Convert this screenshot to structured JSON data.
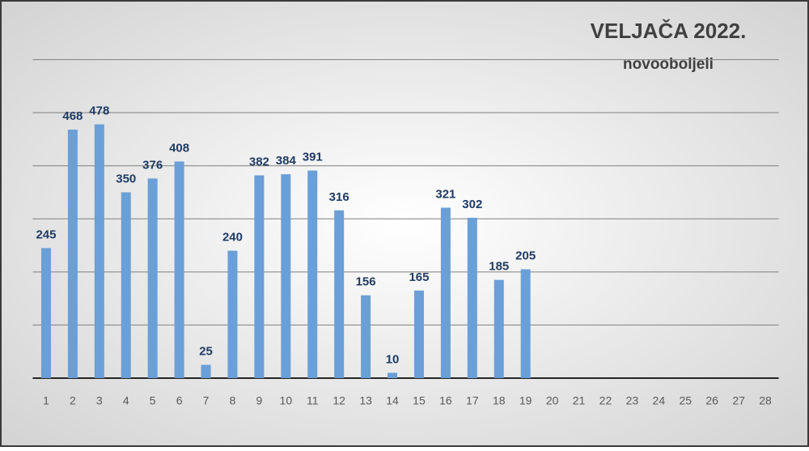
{
  "chart_data": {
    "type": "bar",
    "title": "VELJAČA 2022.",
    "subtitle": "novooboljeli",
    "categories": [
      "1",
      "2",
      "3",
      "4",
      "5",
      "6",
      "7",
      "8",
      "9",
      "10",
      "11",
      "12",
      "13",
      "14",
      "15",
      "16",
      "17",
      "18",
      "19",
      "20",
      "21",
      "22",
      "23",
      "24",
      "25",
      "26",
      "27",
      "28"
    ],
    "values": [
      245,
      468,
      478,
      350,
      376,
      408,
      25,
      240,
      382,
      384,
      391,
      316,
      156,
      10,
      165,
      321,
      302,
      185,
      205,
      null,
      null,
      null,
      null,
      null,
      null,
      null,
      null,
      null
    ],
    "color": "#6a9fd8",
    "ylim": [
      0,
      700
    ],
    "yticks": [
      0,
      100,
      200,
      300,
      400,
      500,
      600
    ],
    "grid": true
  }
}
